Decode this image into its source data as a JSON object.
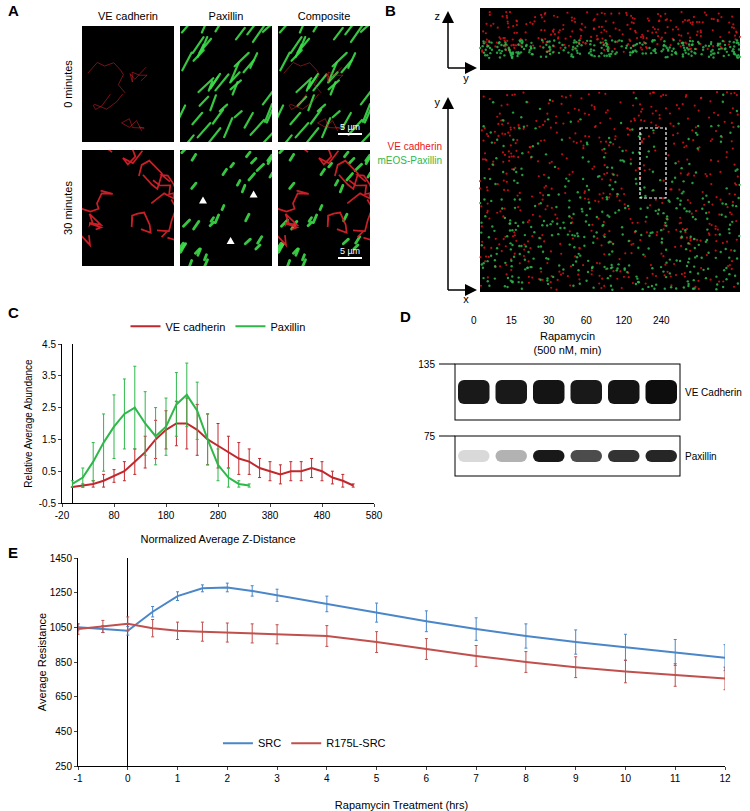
{
  "panel_A": {
    "label": "A",
    "columns": [
      "VE cadherin",
      "Paxillin",
      "Composite"
    ],
    "rows": [
      "0 minutes",
      "30 minutes"
    ],
    "scale_bar": "5 µm"
  },
  "panel_B": {
    "label": "B",
    "axes_top": [
      "z",
      "y"
    ],
    "axes_bottom": [
      "y",
      "x"
    ],
    "legend": [
      {
        "name": "VE cadherin",
        "color": "#e8141b"
      },
      {
        "name": "mEOS-Paxillin",
        "color": "#2db84d"
      }
    ]
  },
  "chart_data": [
    {
      "label": "C",
      "type": "line",
      "x_label": "Normalized Average Z-Distance",
      "y_label": "Relative Average Abundance",
      "x": [
        0,
        20,
        40,
        60,
        80,
        100,
        120,
        140,
        160,
        180,
        200,
        220,
        240,
        260,
        280,
        300,
        320,
        340,
        360,
        380,
        400,
        420,
        440,
        460,
        480,
        500,
        520,
        540
      ],
      "xlim": [
        -20,
        580
      ],
      "xticks": [
        -20,
        80,
        180,
        280,
        380,
        480,
        580
      ],
      "ylim": [
        -0.5,
        4.5
      ],
      "yticks": [
        -0.5,
        0.5,
        1.5,
        2.5,
        3.5,
        4.5
      ],
      "grid": false,
      "legend": "top",
      "series": [
        {
          "name": "VE cadherin",
          "color": "#c0282d",
          "values": [
            0,
            0.05,
            0.1,
            0.2,
            0.35,
            0.5,
            0.8,
            1.1,
            1.5,
            1.8,
            2.0,
            2.0,
            1.8,
            1.5,
            1.3,
            1.1,
            0.9,
            0.8,
            0.6,
            0.5,
            0.4,
            0.5,
            0.5,
            0.6,
            0.5,
            0.3,
            0.2,
            0.05
          ],
          "error": [
            0,
            0.05,
            0.1,
            0.2,
            0.2,
            0.3,
            0.4,
            0.5,
            0.6,
            0.6,
            0.7,
            0.8,
            0.8,
            0.8,
            0.7,
            0.5,
            0.5,
            0.4,
            0.3,
            0.3,
            0.3,
            0.3,
            0.3,
            0.3,
            0.3,
            0.2,
            0.2,
            0.05
          ]
        },
        {
          "name": "Paxillin",
          "color": "#2eb84a",
          "values": [
            0.1,
            0.3,
            0.8,
            1.4,
            1.9,
            2.3,
            2.5,
            2.0,
            1.6,
            1.9,
            2.6,
            2.9,
            2.4,
            1.5,
            0.7,
            0.3,
            0.1,
            0.05,
            null,
            null,
            null,
            null,
            null,
            null,
            null,
            null,
            null,
            null
          ],
          "error": [
            0.1,
            0.3,
            0.6,
            0.9,
            1.0,
            1.1,
            1.3,
            1.0,
            0.9,
            0.9,
            1.0,
            1.0,
            0.9,
            0.8,
            0.5,
            0.3,
            0.1,
            0.05,
            null,
            null,
            null,
            null,
            null,
            null,
            null,
            null,
            null,
            null
          ]
        }
      ]
    },
    {
      "label": "E",
      "type": "line",
      "x_label": "Rapamycin Treatment (hrs)",
      "y_label": "Average Resistance",
      "x": [
        -1,
        -0.5,
        0,
        0.5,
        1,
        1.5,
        2,
        2.5,
        3,
        4,
        5,
        6,
        7,
        8,
        9,
        10,
        11,
        12
      ],
      "xlim": [
        -1,
        12
      ],
      "xticks": [
        -1,
        0,
        1,
        2,
        3,
        4,
        5,
        6,
        7,
        8,
        9,
        10,
        11,
        12
      ],
      "ylim": [
        250,
        1450
      ],
      "yticks": [
        250,
        450,
        650,
        850,
        1050,
        1250,
        1450
      ],
      "grid": false,
      "legend": "bottom",
      "series": [
        {
          "name": "SRC",
          "color": "#4a86c8",
          "values": [
            1050,
            1040,
            1030,
            1140,
            1230,
            1275,
            1280,
            1260,
            1235,
            1185,
            1135,
            1085,
            1040,
            1000,
            965,
            935,
            905,
            875
          ],
          "error": [
            20,
            20,
            25,
            30,
            25,
            20,
            25,
            30,
            35,
            45,
            55,
            60,
            65,
            70,
            70,
            75,
            75,
            75
          ]
        },
        {
          "name": "R175L-SRC",
          "color": "#c0504d",
          "values": [
            1040,
            1055,
            1070,
            1045,
            1030,
            1025,
            1020,
            1015,
            1010,
            1000,
            965,
            925,
            885,
            850,
            820,
            795,
            775,
            755
          ],
          "error": [
            30,
            35,
            40,
            50,
            50,
            55,
            55,
            55,
            55,
            60,
            60,
            60,
            60,
            60,
            60,
            65,
            65,
            65
          ]
        }
      ]
    }
  ],
  "panel_D": {
    "label": "D",
    "title": "Rapamycin",
    "subtitle": "(500 nM, min)",
    "lanes": [
      "0",
      "15",
      "30",
      "60",
      "120",
      "240"
    ],
    "rows": [
      {
        "name": "VE Cadherin",
        "marker": 135,
        "intensity": [
          0.9,
          0.9,
          0.92,
          0.9,
          0.92,
          0.95
        ]
      },
      {
        "name": "Paxillin",
        "marker": 75,
        "intensity": [
          0.15,
          0.3,
          0.9,
          0.7,
          0.8,
          0.85
        ]
      }
    ]
  }
}
